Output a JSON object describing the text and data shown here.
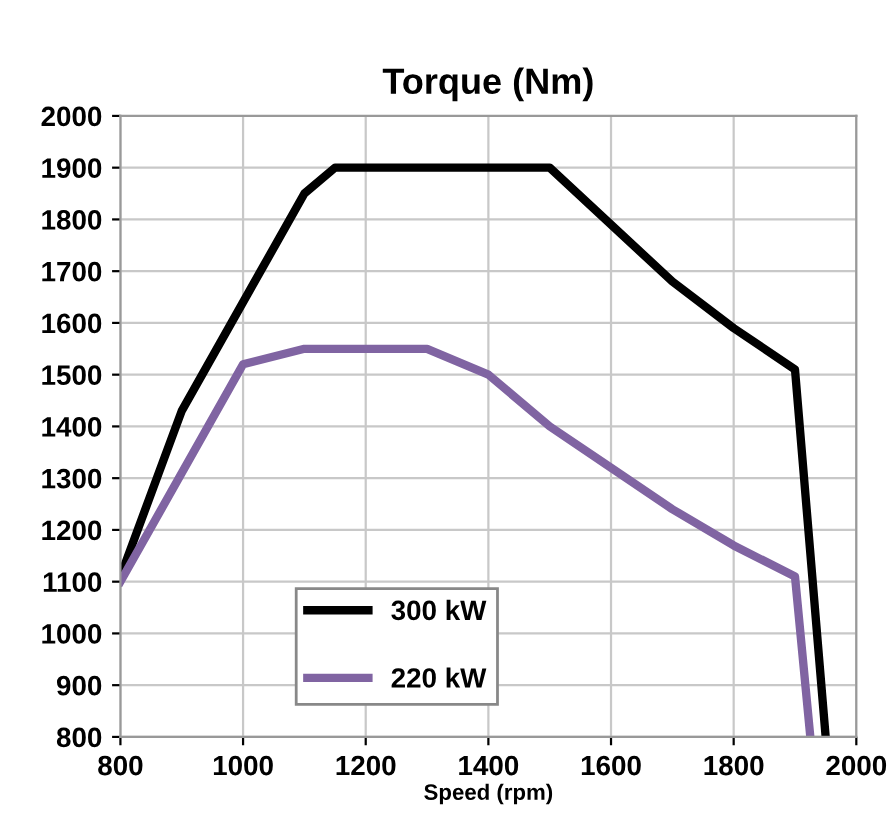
{
  "chart_data": {
    "type": "line",
    "title": "Torque (Nm)",
    "xlabel": "Speed (rpm)",
    "series": [
      {
        "name": "300 kW",
        "color": "#000000",
        "x": [
          800,
          900,
          1100,
          1150,
          1500,
          1700,
          1800,
          1900,
          1950
        ],
        "values": [
          1110,
          1430,
          1850,
          1900,
          1900,
          1680,
          1590,
          1510,
          800
        ]
      },
      {
        "name": "220 kW",
        "color": "#8064a2",
        "x": [
          800,
          1000,
          1100,
          1300,
          1400,
          1500,
          1600,
          1700,
          1800,
          1900,
          1925
        ],
        "values": [
          1100,
          1520,
          1550,
          1550,
          1500,
          1400,
          1320,
          1240,
          1170,
          1110,
          800
        ]
      }
    ],
    "xlim": [
      800,
      2000
    ],
    "xticks": [
      800,
      1000,
      1200,
      1400,
      1600,
      1800,
      2000
    ],
    "ylim": [
      800,
      2000
    ],
    "yticks": [
      800,
      900,
      1000,
      1100,
      1200,
      1300,
      1400,
      1500,
      1600,
      1700,
      1800,
      1900,
      2000
    ],
    "grid": true,
    "legend": "bottom left",
    "line_style": "solid",
    "marker": "none"
  }
}
